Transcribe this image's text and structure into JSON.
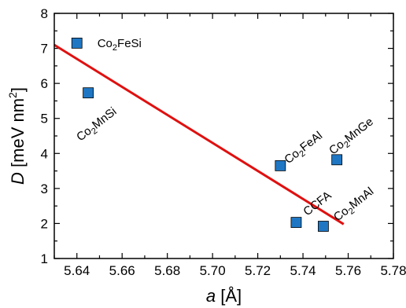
{
  "chart_data": {
    "type": "scatter",
    "xlabel": "a [Å]",
    "ylabel": "D [meV nm2]",
    "xlim": [
      5.63,
      5.78
    ],
    "ylim": [
      1,
      8
    ],
    "x_ticks": [
      "5.64",
      "5.66",
      "5.68",
      "5.70",
      "5.72",
      "5.74",
      "5.76",
      "5.78"
    ],
    "y_ticks": [
      "1",
      "2",
      "3",
      "4",
      "5",
      "6",
      "7",
      "8"
    ],
    "grid": false,
    "points": [
      {
        "label": "Co2FeSi",
        "x": 5.64,
        "y": 7.15
      },
      {
        "label": "Co2MnSi",
        "x": 5.645,
        "y": 5.73
      },
      {
        "label": "Co2FeAl",
        "x": 5.73,
        "y": 3.65
      },
      {
        "label": "Co2MnGe",
        "x": 5.755,
        "y": 3.82
      },
      {
        "label": "CCFA",
        "x": 5.737,
        "y": 2.03
      },
      {
        "label": "Co2MnAl",
        "x": 5.749,
        "y": 1.92
      }
    ],
    "fit_line": {
      "x": [
        5.63,
        5.758
      ],
      "y": [
        7.1,
        1.98
      ]
    },
    "colors": {
      "marker_fill": "#1f77c4",
      "marker_edge": "#000000",
      "fit_line": "#e01010"
    }
  }
}
